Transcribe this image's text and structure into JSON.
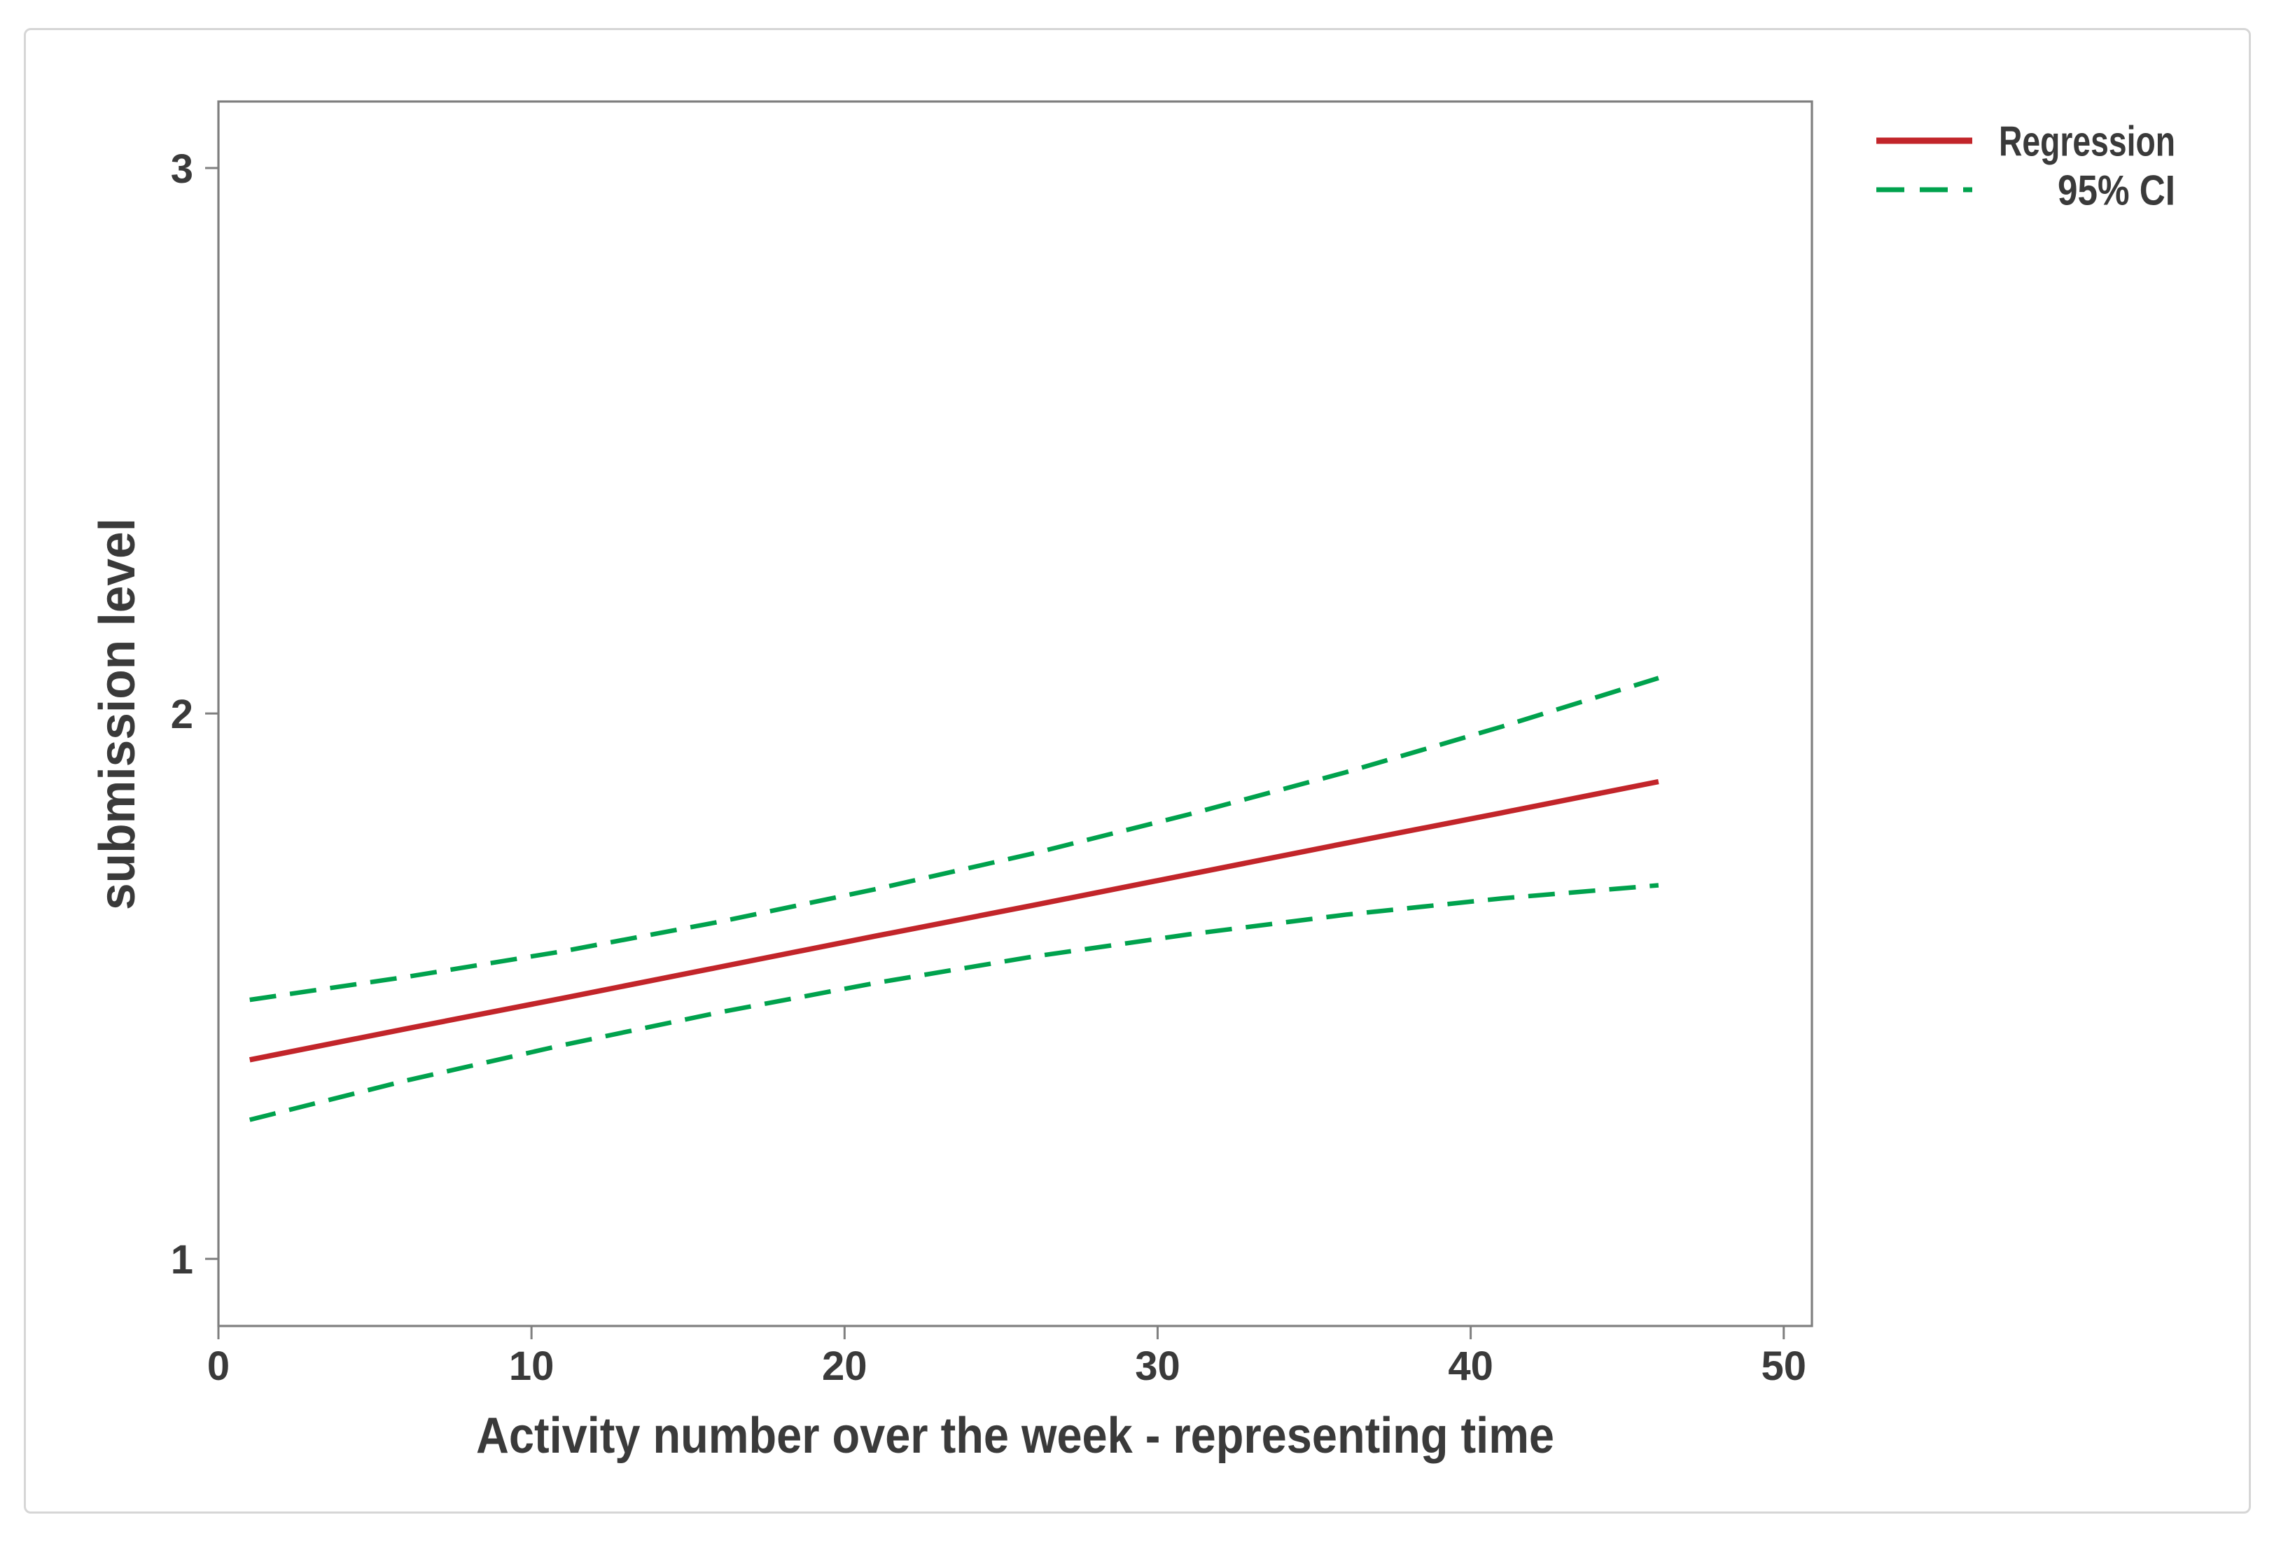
{
  "figure": {
    "background": "#ffffff",
    "border_color": "#d6d6d6"
  },
  "chart_data": {
    "type": "line",
    "title": "",
    "xlabel": "Activity number over the week - representing time",
    "ylabel": "submission level",
    "x_ticks": [
      0,
      10,
      20,
      30,
      40,
      50
    ],
    "y_ticks": [
      1,
      2,
      3
    ],
    "xlim": [
      0,
      50.9
    ],
    "ylim": [
      0.877,
      3.122
    ],
    "grid": false,
    "legend_position": "outside-top-right",
    "x": [
      1,
      6,
      11,
      16,
      21,
      26,
      31,
      36,
      41,
      46
    ],
    "series": [
      {
        "name": "Regression",
        "line_style": "solid",
        "color": "#c2252a",
        "width": 7.5,
        "dash": null,
        "values": [
          1.365,
          1.422,
          1.478,
          1.535,
          1.592,
          1.648,
          1.705,
          1.762,
          1.818,
          1.875
        ]
      },
      {
        "name": "95% CI",
        "line_style": "dashed",
        "color": "#00a24d",
        "width": 6.5,
        "dash": "38 20",
        "values_upper": [
          1.475,
          1.517,
          1.564,
          1.618,
          1.678,
          1.743,
          1.815,
          1.892,
          1.976,
          2.065
        ],
        "values_lower": [
          1.255,
          1.327,
          1.392,
          1.452,
          1.506,
          1.554,
          1.595,
          1.631,
          1.661,
          1.685
        ]
      }
    ],
    "style": {
      "frame_color": "#7f7f7f",
      "text_color": "#3a3a3a"
    }
  }
}
